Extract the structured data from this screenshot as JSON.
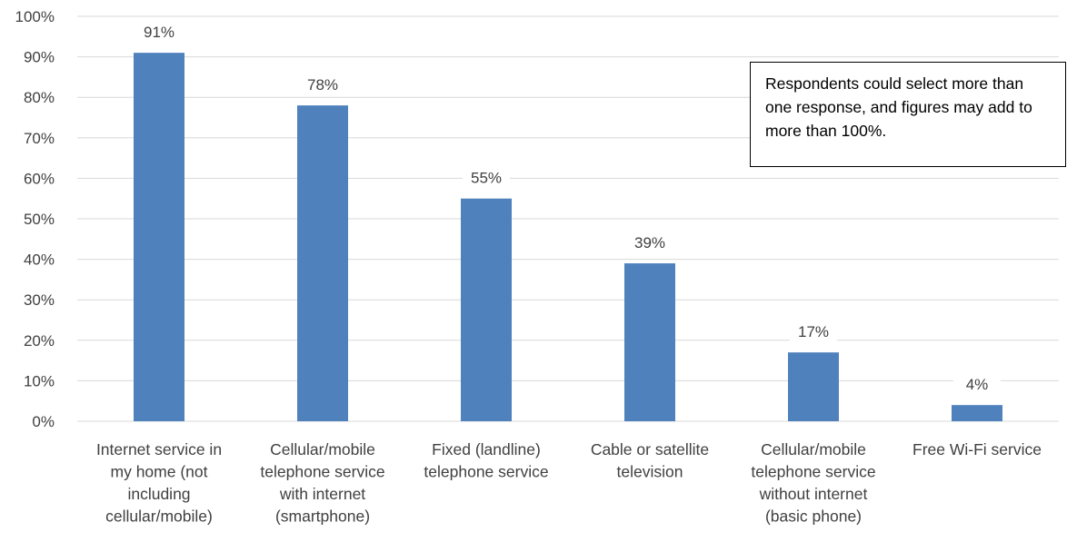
{
  "chart_data": {
    "type": "bar",
    "categories": [
      "Internet service in my home (not including cellular/mobile)",
      "Cellular/mobile telephone service with internet (smartphone)",
      "Fixed (landline) telephone service",
      "Cable or satellite television",
      "Cellular/mobile telephone service without internet (basic phone)",
      "Free Wi-Fi service"
    ],
    "category_label_lines": [
      [
        "Internet service in",
        "my home (not",
        "including",
        "cellular/mobile)"
      ],
      [
        "Cellular/mobile",
        "telephone service",
        "with internet",
        "(smartphone)"
      ],
      [
        "Fixed (landline)",
        "telephone service"
      ],
      [
        "Cable or satellite",
        "television"
      ],
      [
        "Cellular/mobile",
        "telephone service",
        "without internet",
        "(basic phone)"
      ],
      [
        "Free Wi-Fi service"
      ]
    ],
    "values": [
      91,
      78,
      55,
      39,
      17,
      4
    ],
    "data_labels": [
      "91%",
      "78%",
      "55%",
      "39%",
      "17%",
      "4%"
    ],
    "ylim": [
      0,
      100
    ],
    "y_ticks": [
      "0%",
      "10%",
      "20%",
      "30%",
      "40%",
      "50%",
      "60%",
      "70%",
      "80%",
      "90%",
      "100%"
    ],
    "grid": true,
    "bar_color": "#4f81bd",
    "gridline_color": "#d9d9d9",
    "annotation": "Respondents could select more than one response, and figures may add to more than 100%."
  }
}
